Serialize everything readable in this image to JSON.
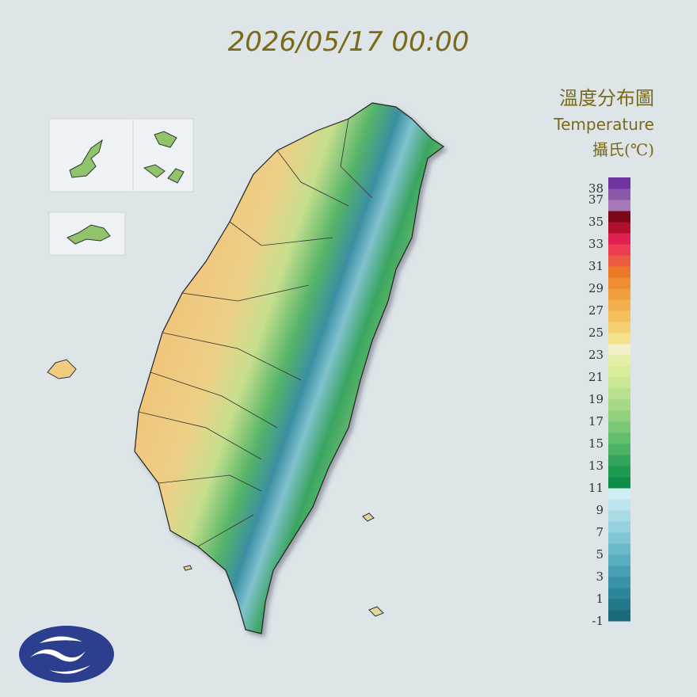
{
  "timestamp": "2026/05/17 00:00",
  "legend": {
    "title": "溫度分布圖",
    "subtitle": "Temperature",
    "unit": "攝氏(℃)",
    "labels": [
      38,
      37,
      35,
      33,
      31,
      29,
      27,
      25,
      23,
      21,
      19,
      17,
      15,
      13,
      11,
      9,
      7,
      5,
      3,
      1,
      -1
    ],
    "colors": [
      "#1b6b7c",
      "#23788a",
      "#2d8598",
      "#3992a6",
      "#489fb2",
      "#58adbf",
      "#6bbacb",
      "#80c6d6",
      "#95d1df",
      "#a9dbe6",
      "#bde5ee",
      "#cdeef3",
      "#0e8c4a",
      "#1f9a52",
      "#33a65b",
      "#4bb264",
      "#62bd6c",
      "#7ac775",
      "#92d07f",
      "#a6d987",
      "#b8e08e",
      "#c9e794",
      "#d8ec99",
      "#e4f0a6",
      "#f2f0c8",
      "#f5e08c",
      "#f5d070",
      "#f3c05c",
      "#f1b04c",
      "#ef9e3c",
      "#ed8c30",
      "#eb7a28",
      "#ec5a40",
      "#ee3c55",
      "#e02050",
      "#b0102e",
      "#7a0818",
      "#a678b8",
      "#8c58a8",
      "#7034a0"
    ]
  }
}
